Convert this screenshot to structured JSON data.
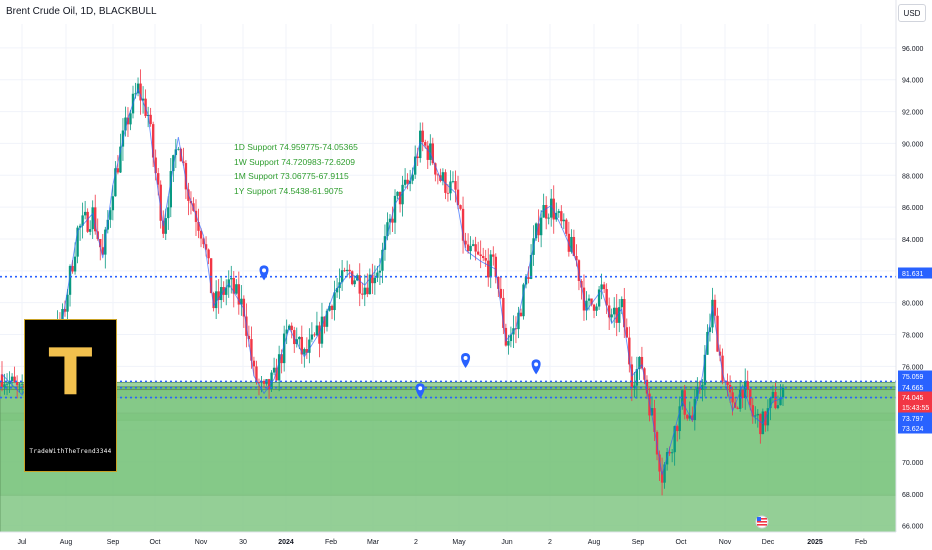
{
  "title": "Brent Crude Oil, 1D, BLACKBULL",
  "currency_button": "USD",
  "logo": {
    "letter": "T",
    "caption": "TradeWithTheTrend3344"
  },
  "annotations": [
    "1D Support 74.959775-74.05365",
    "1W Support 74.720983-72.6209",
    "1M Support 73.06775-67.9115",
    "1Y Support 74.5438-61.9075"
  ],
  "colors": {
    "up": "#089981",
    "down": "#f23645",
    "zone": "#4caf50",
    "zone_light": "#81c784",
    "dotted": "#2962ff",
    "annotation": "#2e9d2e",
    "price_red": "#f23645",
    "price_blue": "#2962ff"
  },
  "chart_data": {
    "type": "candlestick",
    "y_axis_ticks": [
      "96.000",
      "94.000",
      "92.000",
      "90.000",
      "88.000",
      "86.000",
      "84.000",
      "82.000",
      "80.000",
      "78.000",
      "76.000",
      "74.000",
      "72.000",
      "70.000",
      "68.000",
      "66.000"
    ],
    "ylim": [
      65.6,
      97.5
    ],
    "x_axis_labels": [
      "Jul",
      "Aug",
      "Sep",
      "Oct",
      "Nov",
      "30",
      "2024",
      "Feb",
      "Mar",
      "2",
      "May",
      "Jun",
      "2",
      "Aug",
      "Sep",
      "Oct",
      "Nov",
      "Dec",
      "2025",
      "Feb"
    ],
    "price_labels": [
      {
        "text": "81.631",
        "value": 81.631,
        "style": "blue"
      },
      {
        "text": "75.059",
        "value": 75.059,
        "style": "blue"
      },
      {
        "text": "74.665",
        "value": 74.665,
        "style": "blue"
      },
      {
        "text": "74.045",
        "value": 74.045,
        "style": "red"
      },
      {
        "text": "15:43:55",
        "value": 73.5,
        "style": "red"
      },
      {
        "text": "73.797",
        "value": 73.797,
        "style": "blue"
      },
      {
        "text": "73.624",
        "value": 73.624,
        "style": "blue"
      }
    ],
    "horizontal_lines": [
      81.631,
      75.059,
      74.665,
      74.045
    ],
    "zones": [
      {
        "from": 75.0,
        "to": 74.05,
        "shade": "dark"
      },
      {
        "from": 74.72,
        "to": 72.62,
        "shade": "dark"
      },
      {
        "from": 73.07,
        "to": 67.91,
        "shade": "dark"
      },
      {
        "from": 74.54,
        "to": 65.6,
        "shade": "light"
      }
    ],
    "markers": [
      {
        "date_index": 52,
        "value": 81.9
      },
      {
        "date_index": 83,
        "value": 74.5
      },
      {
        "date_index": 92,
        "value": 76.4
      },
      {
        "date_index": 106,
        "value": 76.0
      }
    ],
    "price_path": [
      [
        0,
        75.5
      ],
      [
        4,
        74.2
      ],
      [
        8,
        76.8
      ],
      [
        12,
        78.9
      ],
      [
        15,
        84.5
      ],
      [
        18,
        85.6
      ],
      [
        20,
        82.8
      ],
      [
        22,
        87.4
      ],
      [
        25,
        91.6
      ],
      [
        27,
        93.4
      ],
      [
        29,
        91.8
      ],
      [
        30,
        89.2
      ],
      [
        32,
        84.8
      ],
      [
        35,
        90.4
      ],
      [
        37,
        86.8
      ],
      [
        40,
        84.2
      ],
      [
        42,
        79.8
      ],
      [
        45,
        81.2
      ],
      [
        48,
        79.6
      ],
      [
        50,
        75.4
      ],
      [
        52,
        74.3
      ],
      [
        54,
        75.2
      ],
      [
        57,
        78.4
      ],
      [
        60,
        76.6
      ],
      [
        63,
        78.1
      ],
      [
        66,
        80.7
      ],
      [
        69,
        81.9
      ],
      [
        72,
        81.1
      ],
      [
        75,
        82.4
      ],
      [
        78,
        86.2
      ],
      [
        81,
        87.6
      ],
      [
        83,
        90.1
      ],
      [
        85,
        89.4
      ],
      [
        87,
        87.8
      ],
      [
        90,
        86.9
      ],
      [
        92,
        83.3
      ],
      [
        95,
        82.6
      ],
      [
        98,
        82.1
      ],
      [
        100,
        77.6
      ],
      [
        102,
        78.4
      ],
      [
        105,
        82.8
      ],
      [
        107,
        85.7
      ],
      [
        109,
        86.1
      ],
      [
        111,
        84.8
      ],
      [
        114,
        82.6
      ],
      [
        116,
        79.5
      ],
      [
        119,
        80.8
      ],
      [
        121,
        78.7
      ],
      [
        123,
        79.6
      ],
      [
        125,
        75.4
      ],
      [
        127,
        76.1
      ],
      [
        129,
        72.9
      ],
      [
        131,
        69.2
      ],
      [
        133,
        71.4
      ],
      [
        135,
        73.8
      ],
      [
        137,
        72.6
      ],
      [
        139,
        75.4
      ],
      [
        141,
        79.8
      ],
      [
        143,
        75.6
      ],
      [
        145,
        73.2
      ],
      [
        147,
        74.8
      ],
      [
        149,
        72.9
      ],
      [
        151,
        72.4
      ],
      [
        153,
        73.8
      ],
      [
        155,
        74.0
      ]
    ]
  }
}
